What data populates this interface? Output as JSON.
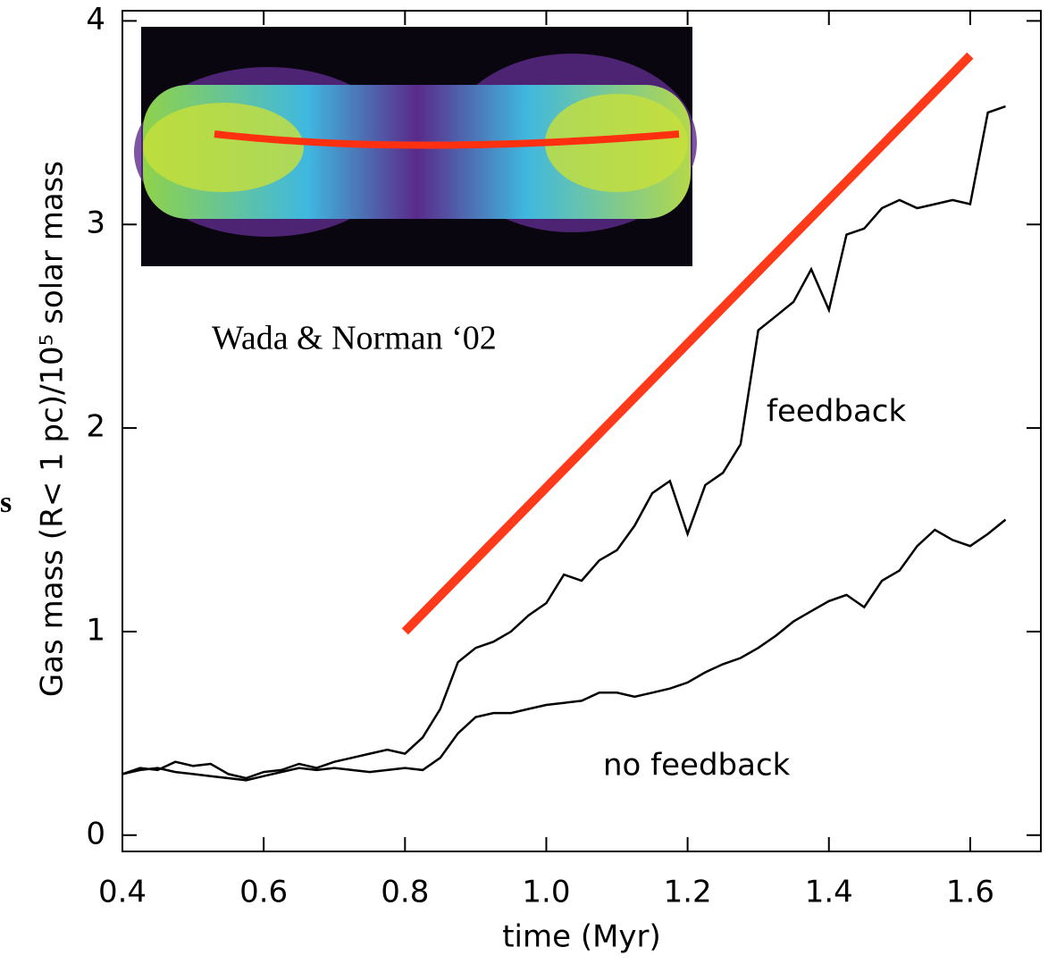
{
  "chart_data": {
    "type": "line",
    "xlabel": "time (Myr)",
    "ylabel": "Gas mass (R< 1 pc)/10⁵ solar mass",
    "annotation": "Wada & Norman ‘02",
    "edge_text": "s",
    "xlim": [
      0.4,
      1.7
    ],
    "ylim": [
      -0.08,
      4.05
    ],
    "xticks": [
      0.4,
      0.6,
      0.8,
      {
        "value": 1,
        "label": "1.0"
      },
      1.2,
      1.4,
      1.6
    ],
    "yticks": [
      0,
      1,
      2,
      3,
      4
    ],
    "x": [
      0.4,
      0.425,
      0.45,
      0.475,
      0.5,
      0.525,
      0.55,
      0.575,
      0.6,
      0.625,
      0.65,
      0.675,
      0.7,
      0.725,
      0.75,
      0.775,
      0.8,
      0.825,
      0.85,
      0.875,
      0.9,
      0.925,
      0.95,
      0.975,
      1.0,
      1.025,
      1.05,
      1.075,
      1.1,
      1.125,
      1.15,
      1.175,
      1.2,
      1.225,
      1.25,
      1.275,
      1.3,
      1.325,
      1.35,
      1.375,
      1.4,
      1.425,
      1.45,
      1.475,
      1.5,
      1.525,
      1.55,
      1.575,
      1.6,
      1.625,
      1.65
    ],
    "series": [
      {
        "name": "feedback",
        "color": "#000000",
        "values": [
          0.3,
          0.33,
          0.32,
          0.36,
          0.34,
          0.35,
          0.3,
          0.28,
          0.31,
          0.32,
          0.35,
          0.33,
          0.36,
          0.38,
          0.4,
          0.42,
          0.4,
          0.48,
          0.62,
          0.85,
          0.92,
          0.95,
          1.0,
          1.08,
          1.14,
          1.28,
          1.25,
          1.35,
          1.4,
          1.52,
          1.68,
          1.74,
          1.48,
          1.72,
          1.78,
          1.92,
          2.48,
          2.55,
          2.62,
          2.78,
          2.58,
          2.95,
          2.98,
          3.08,
          3.12,
          3.08,
          3.1,
          3.12,
          3.1,
          3.55,
          3.58
        ]
      },
      {
        "name": "no feedback",
        "color": "#000000",
        "values": [
          0.3,
          0.32,
          0.33,
          0.31,
          0.3,
          0.29,
          0.28,
          0.27,
          0.29,
          0.31,
          0.33,
          0.32,
          0.33,
          0.32,
          0.31,
          0.32,
          0.33,
          0.32,
          0.38,
          0.5,
          0.58,
          0.6,
          0.6,
          0.62,
          0.64,
          0.65,
          0.66,
          0.7,
          0.7,
          0.68,
          0.7,
          0.72,
          0.75,
          0.8,
          0.84,
          0.87,
          0.92,
          0.98,
          1.05,
          1.1,
          1.15,
          1.18,
          1.12,
          1.25,
          1.3,
          1.42,
          1.5,
          1.45,
          1.42,
          1.48,
          1.55
        ]
      },
      {
        "color": "#ff3a1a",
        "x": [
          0.8,
          1.6
        ],
        "values": [
          1.0,
          3.83
        ]
      }
    ]
  }
}
